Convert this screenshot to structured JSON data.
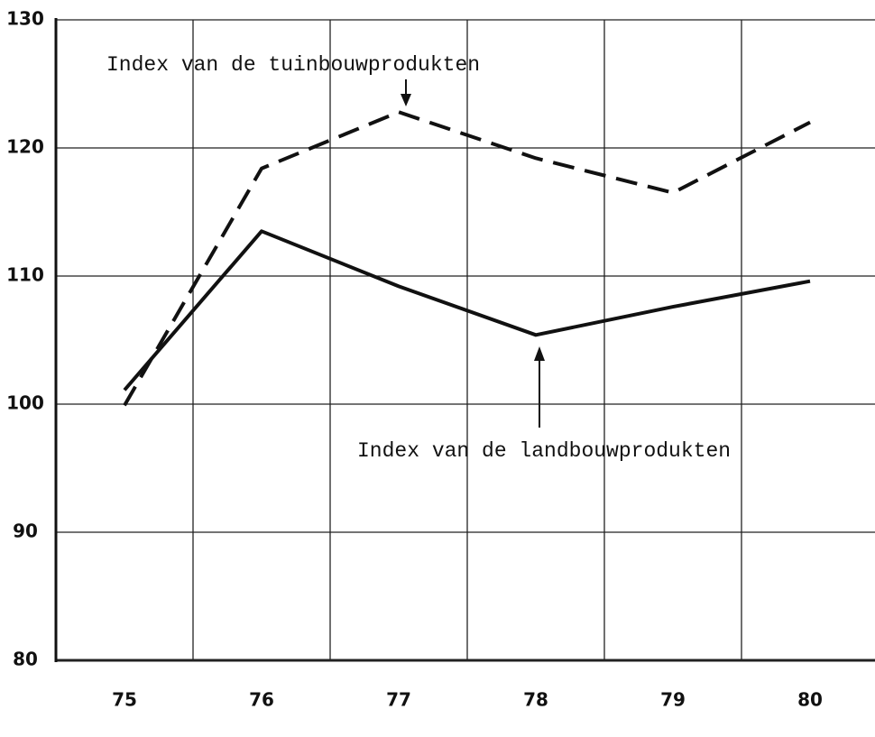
{
  "chart_data": {
    "type": "line",
    "x": [
      75,
      76,
      77,
      78,
      79,
      80
    ],
    "xlim": [
      74.5,
      80.5
    ],
    "xticks": [
      75,
      76,
      77,
      78,
      79,
      80
    ],
    "xgrid": [
      75.5,
      76.5,
      77.5,
      78.5,
      79.5
    ],
    "ylim": [
      80,
      130
    ],
    "yticks": [
      80,
      90,
      100,
      110,
      120,
      130
    ],
    "grid": true,
    "series": [
      {
        "name": "Index van de tuinbouwprodukten",
        "color": "#111111",
        "dash": true,
        "values": [
          99.9,
          118.4,
          122.8,
          119.2,
          116.5,
          122.0
        ]
      },
      {
        "name": "Index van de landbouwprodukten",
        "color": "#111111",
        "dash": false,
        "values": [
          101.1,
          113.5,
          109.2,
          105.4,
          107.6,
          109.6
        ]
      }
    ]
  }
}
